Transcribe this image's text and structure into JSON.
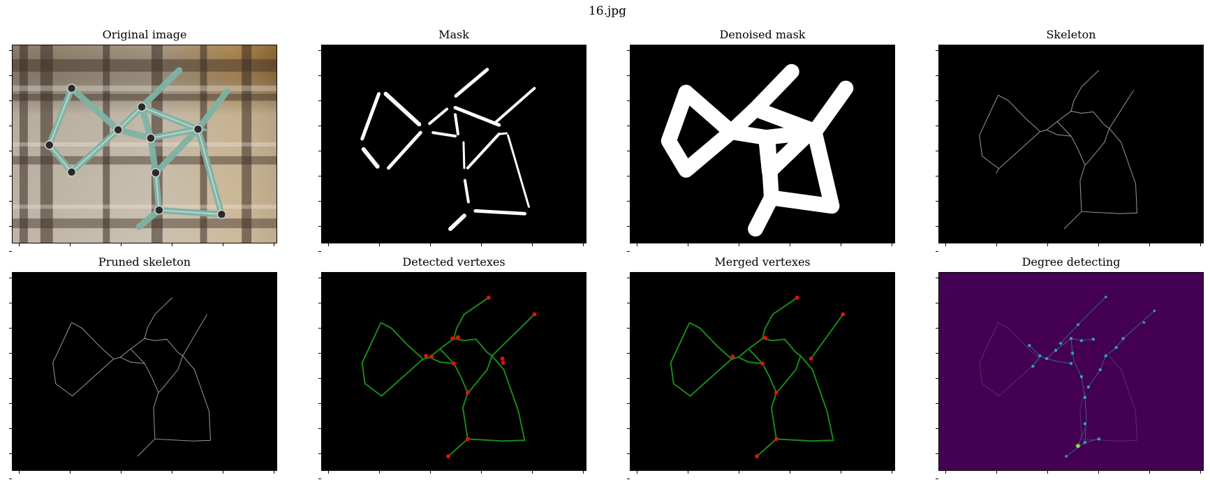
{
  "figure": {
    "title": "16.jpg"
  },
  "panels": [
    {
      "id": "original",
      "title": "Original image"
    },
    {
      "id": "mask",
      "title": "Mask"
    },
    {
      "id": "denoised",
      "title": "Denoised mask"
    },
    {
      "id": "skeleton",
      "title": "Skeleton"
    },
    {
      "id": "pruned",
      "title": "Pruned skeleton"
    },
    {
      "id": "detected",
      "title": "Detected vertexes"
    },
    {
      "id": "merged",
      "title": "Merged vertexes"
    },
    {
      "id": "degree",
      "title": "Degree detecting"
    }
  ],
  "colors": {
    "black": "#000000",
    "edge_green": "#1a8a1a",
    "vertex_red": "#e01010",
    "skeleton_gray": "#9a9a9a",
    "viridis_bg": "#440154",
    "viridis_edge": "#3b5c8c",
    "viridis_node": "#2fa7a3",
    "viridis_hot": "#8fd744"
  }
}
